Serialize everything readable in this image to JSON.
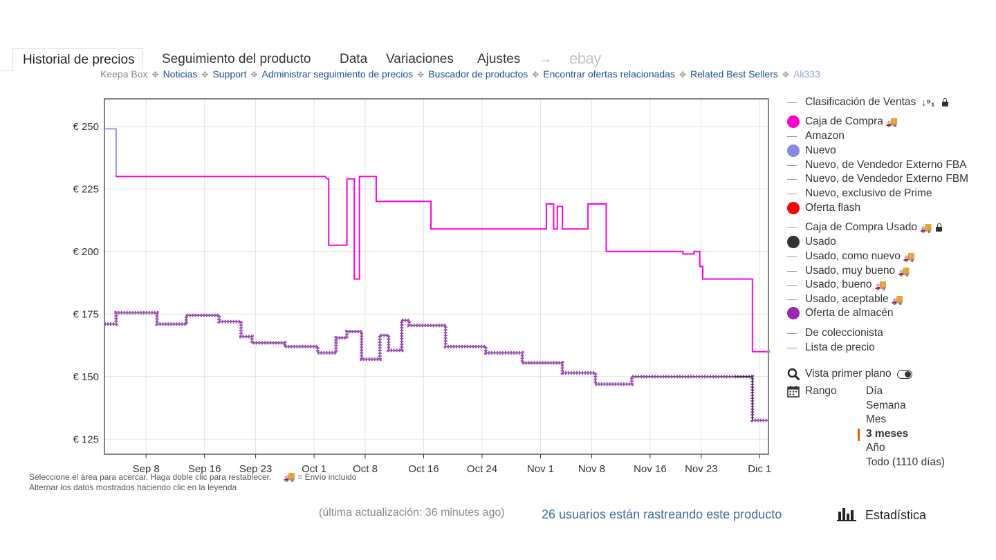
{
  "tabs": [
    {
      "label": "Historial de precios",
      "active": true
    },
    {
      "label": "Seguimiento del producto"
    },
    {
      "label": "Data"
    },
    {
      "label": "Variaciones"
    },
    {
      "label": "Ajustes"
    },
    {
      "label": "→"
    },
    {
      "label": "ebay"
    }
  ],
  "links": [
    "Keepa Box",
    "Noticias",
    "Support",
    "Administrar seguimiento de precios",
    "Buscador de productos",
    "Encontrar ofertas relacionadas",
    "Related Best Sellers",
    "Ali333"
  ],
  "chart_data": {
    "type": "line",
    "currency_prefix": "€",
    "y_ticks": [
      250,
      225,
      200,
      175,
      150,
      125
    ],
    "y_tick_labels": [
      "€ 250",
      "€ 225",
      "€ 200",
      "€ 175",
      "€ 150",
      "€ 125"
    ],
    "ylim": [
      119,
      261
    ],
    "x_tick_labels": [
      "Sep 8",
      "Sep 16",
      "Sep 23",
      "Oct 1",
      "Oct 8",
      "Oct 16",
      "Oct 24",
      "Nov 1",
      "Nov 8",
      "Nov 16",
      "Nov 23",
      "Dic 1"
    ],
    "x_tick_days": [
      8,
      16,
      23,
      31,
      38,
      46,
      54,
      62,
      69,
      77,
      84,
      92
    ],
    "x_note": "day number counted from Sep 1 (Sep 8 = 8, Oct 1 = 31, Dic 1 = 92)",
    "xlim": [
      2.3,
      93.2
    ],
    "grid": true,
    "series": [
      {
        "name": "Nuevo",
        "color": "#8888dd",
        "points": [
          [
            2.3,
            249
          ],
          [
            3.9,
            249
          ],
          [
            3.9,
            230
          ],
          [
            4.2,
            230
          ]
        ]
      },
      {
        "name": "Caja de Compra",
        "color": "#ff00dd",
        "points": [
          [
            3.9,
            230
          ],
          [
            32.5,
            230
          ],
          [
            32.8,
            229
          ],
          [
            33.0,
            229
          ],
          [
            33.0,
            202.5
          ],
          [
            35.5,
            202.5
          ],
          [
            35.5,
            229
          ],
          [
            36.5,
            229
          ],
          [
            36.5,
            189
          ],
          [
            37.2,
            189
          ],
          [
            37.2,
            230
          ],
          [
            39.5,
            230
          ],
          [
            39.5,
            220
          ],
          [
            47.0,
            220
          ],
          [
            47.0,
            209
          ],
          [
            62.8,
            209
          ],
          [
            62.8,
            219
          ],
          [
            63.8,
            219
          ],
          [
            63.8,
            209
          ],
          [
            64.3,
            209
          ],
          [
            64.3,
            218
          ],
          [
            65.0,
            218
          ],
          [
            65.0,
            209
          ],
          [
            68.5,
            209
          ],
          [
            68.5,
            219
          ],
          [
            71.0,
            219
          ],
          [
            71.0,
            200
          ],
          [
            81.5,
            200
          ],
          [
            81.5,
            199
          ],
          [
            83.0,
            199
          ],
          [
            83.0,
            200
          ],
          [
            83.8,
            200
          ],
          [
            83.8,
            194
          ],
          [
            84.2,
            194
          ],
          [
            84.2,
            189
          ],
          [
            87.5,
            189
          ],
          [
            87.5,
            189
          ],
          [
            91.0,
            189
          ],
          [
            91.0,
            160
          ],
          [
            93.2,
            160
          ]
        ]
      },
      {
        "name": "Oferta de almacén",
        "color": "#aa44cc",
        "points": [
          [
            2.3,
            171
          ],
          [
            3.9,
            171
          ],
          [
            3.9,
            175.5
          ],
          [
            9.5,
            175.5
          ],
          [
            9.5,
            171
          ],
          [
            13.5,
            171
          ],
          [
            13.5,
            174.5
          ],
          [
            18.0,
            174.5
          ],
          [
            18.0,
            172
          ],
          [
            21.0,
            172
          ],
          [
            21.0,
            166
          ],
          [
            22.5,
            166
          ],
          [
            22.5,
            163.5
          ],
          [
            27.0,
            163.5
          ],
          [
            27.0,
            162
          ],
          [
            31.5,
            162
          ],
          [
            31.5,
            159.5
          ],
          [
            34.0,
            159.5
          ],
          [
            34.0,
            165.5
          ],
          [
            35.5,
            165.5
          ],
          [
            35.5,
            168
          ],
          [
            37.5,
            168
          ],
          [
            37.5,
            157
          ],
          [
            40.0,
            157
          ],
          [
            40.0,
            166.5
          ],
          [
            41.2,
            166.5
          ],
          [
            41.2,
            160.5
          ],
          [
            43.0,
            160.5
          ],
          [
            43.0,
            172.5
          ],
          [
            44.0,
            172.5
          ],
          [
            44.0,
            170.5
          ],
          [
            49.0,
            170.5
          ],
          [
            49.0,
            162
          ],
          [
            54.5,
            162
          ],
          [
            54.5,
            159.5
          ],
          [
            59.5,
            159.5
          ],
          [
            59.5,
            155.5
          ],
          [
            65.0,
            155.5
          ],
          [
            65.0,
            151.5
          ],
          [
            69.5,
            151.5
          ],
          [
            69.5,
            147
          ],
          [
            74.5,
            147
          ],
          [
            74.5,
            150
          ],
          [
            91.0,
            150
          ],
          [
            91.0,
            132.5
          ],
          [
            93.2,
            132.5
          ]
        ]
      },
      {
        "name": "Usado",
        "color": "#3a3a3a",
        "points": [
          [
            88.5,
            150
          ],
          [
            91.0,
            150
          ],
          [
            91.0,
            132.5
          ]
        ]
      }
    ]
  },
  "hints": {
    "line1": "Seleccione el área para acercar. Haga doble clic para restablecer.",
    "shipping_note": "= Envío incluido",
    "line2": "Alternar los datos mostrados haciendo clic en la leyenda"
  },
  "legend": [
    {
      "label": "Clasificación de Ventas",
      "kind": "line",
      "sort_icon": true,
      "lock": true
    },
    {
      "label": "Caja de Compra",
      "kind": "dot",
      "color": "#ff00cc",
      "truck": true
    },
    {
      "label": "Amazon",
      "kind": "line"
    },
    {
      "label": "Nuevo",
      "kind": "dot",
      "color": "#8888dd"
    },
    {
      "label": "Nuevo, de Vendedor Externo FBA",
      "kind": "line"
    },
    {
      "label": "Nuevo, de Vendedor Externo FBM",
      "kind": "line"
    },
    {
      "label": "Nuevo, exclusivo de Prime",
      "kind": "line"
    },
    {
      "label": "Oferta flash",
      "kind": "dot",
      "color": "#ff0000"
    },
    {
      "label": "Caja de Compra Usado",
      "kind": "line",
      "truck": true,
      "lock": true
    },
    {
      "label": "Usado",
      "kind": "dot",
      "color": "#333333"
    },
    {
      "label": "Usado, como nuevo",
      "kind": "line",
      "truck": true
    },
    {
      "label": "Usado, muy bueno",
      "kind": "line",
      "truck": true
    },
    {
      "label": "Usado, bueno",
      "kind": "line",
      "truck": true
    },
    {
      "label": "Usado, aceptable",
      "kind": "line",
      "truck": true
    },
    {
      "label": "Oferta de almacén",
      "kind": "dot",
      "color": "#9c27b0"
    },
    {
      "label": "De coleccionista",
      "kind": "line"
    },
    {
      "label": "Lista de precio",
      "kind": "line"
    }
  ],
  "controls": {
    "foreground_label": "Vista primer plano",
    "range_label": "Rango",
    "range_options": [
      "Día",
      "Semana",
      "Mes",
      "3 meses",
      "Año",
      "Todo (1110 días)"
    ],
    "range_selected": "3 meses"
  },
  "footer": {
    "last_update": "(última actualización: 36 minutes ago)",
    "trackers": "26 usuarios están rastreando este producto",
    "stats": "Estadística"
  },
  "icons": {
    "truck": "truck-icon",
    "lock": "lock-icon",
    "search": "search-icon",
    "calendar": "calendar-icon",
    "toggle": "toggle-icon",
    "stats": "bar-chart-icon"
  }
}
